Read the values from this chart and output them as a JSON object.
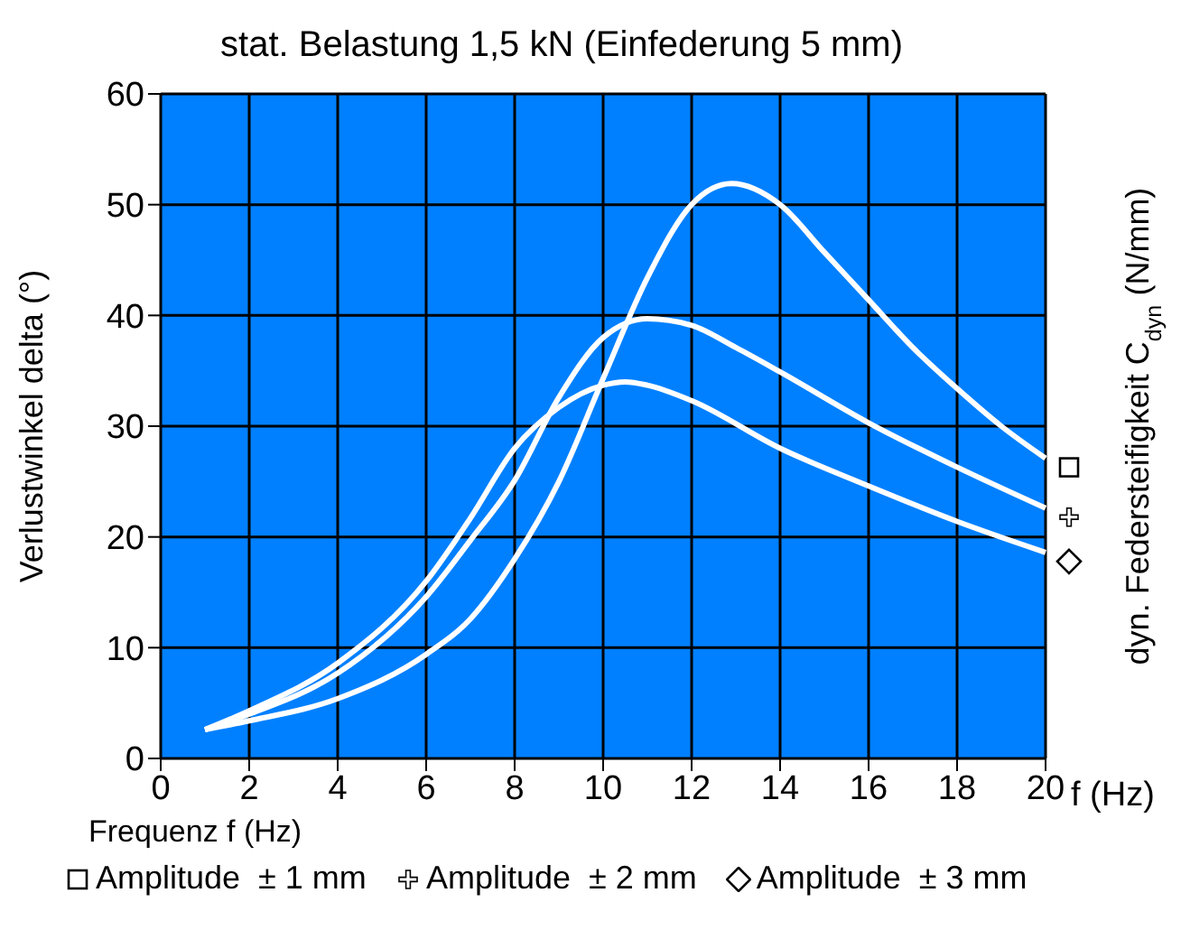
{
  "chart_data": {
    "type": "line",
    "title": "stat. Belastung 1,5 kN (Einfederung 5 mm)",
    "xlabel": "Frequenz f (Hz)",
    "ylabel": "Verlustwinkel delta (°)",
    "y2label": "dyn. Federsteifigkeit C$_{dyn}$ (N/mm)",
    "annotations": [
      "f (Hz)"
    ],
    "xlim": [
      0,
      20
    ],
    "xticks": [
      0,
      2,
      4,
      6,
      8,
      10,
      12,
      14,
      16,
      18,
      20
    ],
    "ylim": [
      0,
      60
    ],
    "yticks": [
      0,
      10,
      20,
      30,
      40,
      50,
      60
    ],
    "grid": true,
    "legend": "bottom",
    "series": [
      {
        "name": "Amplitude  ± 1 mm",
        "color": "#ffffff",
        "x": [
          1,
          2,
          4,
          6,
          7,
          8,
          9,
          10,
          11,
          12,
          12.9,
          14,
          15,
          16,
          17,
          18,
          19,
          20
        ],
        "values": [
          2.6,
          3.4,
          5.4,
          9.4,
          12.6,
          18,
          25,
          34.3,
          43.4,
          50,
          51.9,
          50,
          45.7,
          41.4,
          37.1,
          33.4,
          30,
          27.1
        ]
      },
      {
        "name": "Amplitude  ± 2 mm",
        "color": "#ffffff",
        "x": [
          1,
          2,
          4,
          6,
          7,
          8,
          9,
          10,
          11,
          12,
          13,
          14,
          16,
          18,
          20
        ],
        "values": [
          2.6,
          4,
          7.7,
          14.6,
          19.7,
          25.1,
          32.6,
          38,
          39.7,
          39.1,
          37.1,
          34.9,
          30.3,
          26.3,
          22.6
        ]
      },
      {
        "name": "Amplitude  ± 3 mm",
        "color": "#ffffff",
        "x": [
          1,
          2,
          4,
          6,
          7,
          8,
          9,
          10,
          10.5,
          11,
          12,
          14,
          16,
          18,
          20
        ],
        "values": [
          2.6,
          4.3,
          8.6,
          16,
          21.7,
          28,
          31.7,
          33.7,
          34,
          33.7,
          32.3,
          28,
          24.6,
          21.4,
          18.6
        ]
      }
    ]
  }
}
